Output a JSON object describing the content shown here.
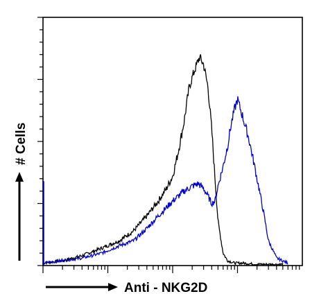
{
  "chart_data": {
    "type": "area",
    "title": "",
    "xlabel": "Anti - NKG2D",
    "ylabel": "# Cells",
    "x_scale": "log",
    "xlim": [
      1,
      10000
    ],
    "ylim": [
      0,
      100
    ],
    "grid": false,
    "legend": "none",
    "x_ticks_printed": false,
    "y_ticks_printed": false,
    "series": [
      {
        "color": "#000000",
        "x": [
          1,
          2,
          4,
          8,
          15,
          25,
          40,
          60,
          80,
          100,
          120,
          150,
          180,
          220,
          260,
          300,
          350,
          400,
          450,
          500,
          600,
          700,
          900,
          1200,
          2000,
          5000
        ],
        "values": [
          1,
          2,
          4,
          7,
          10,
          14,
          20,
          26,
          31,
          36,
          45,
          58,
          72,
          79,
          84,
          81,
          72,
          55,
          35,
          18,
          5,
          2,
          1,
          1,
          0.5,
          0.5
        ]
      },
      {
        "color": "#0000cc",
        "x": [
          1,
          2,
          4,
          8,
          15,
          25,
          40,
          60,
          100,
          150,
          200,
          250,
          300,
          350,
          400,
          450,
          500,
          600,
          700,
          800,
          900,
          1000,
          1200,
          1500,
          1800,
          2000,
          2500,
          3000,
          4000,
          6000
        ],
        "values": [
          1,
          2,
          3,
          5,
          8,
          10,
          15,
          20,
          26,
          30,
          32,
          33,
          31,
          28,
          25,
          26,
          32,
          40,
          48,
          57,
          63,
          67,
          60,
          51,
          41,
          35,
          22,
          10,
          3,
          1
        ]
      }
    ]
  }
}
